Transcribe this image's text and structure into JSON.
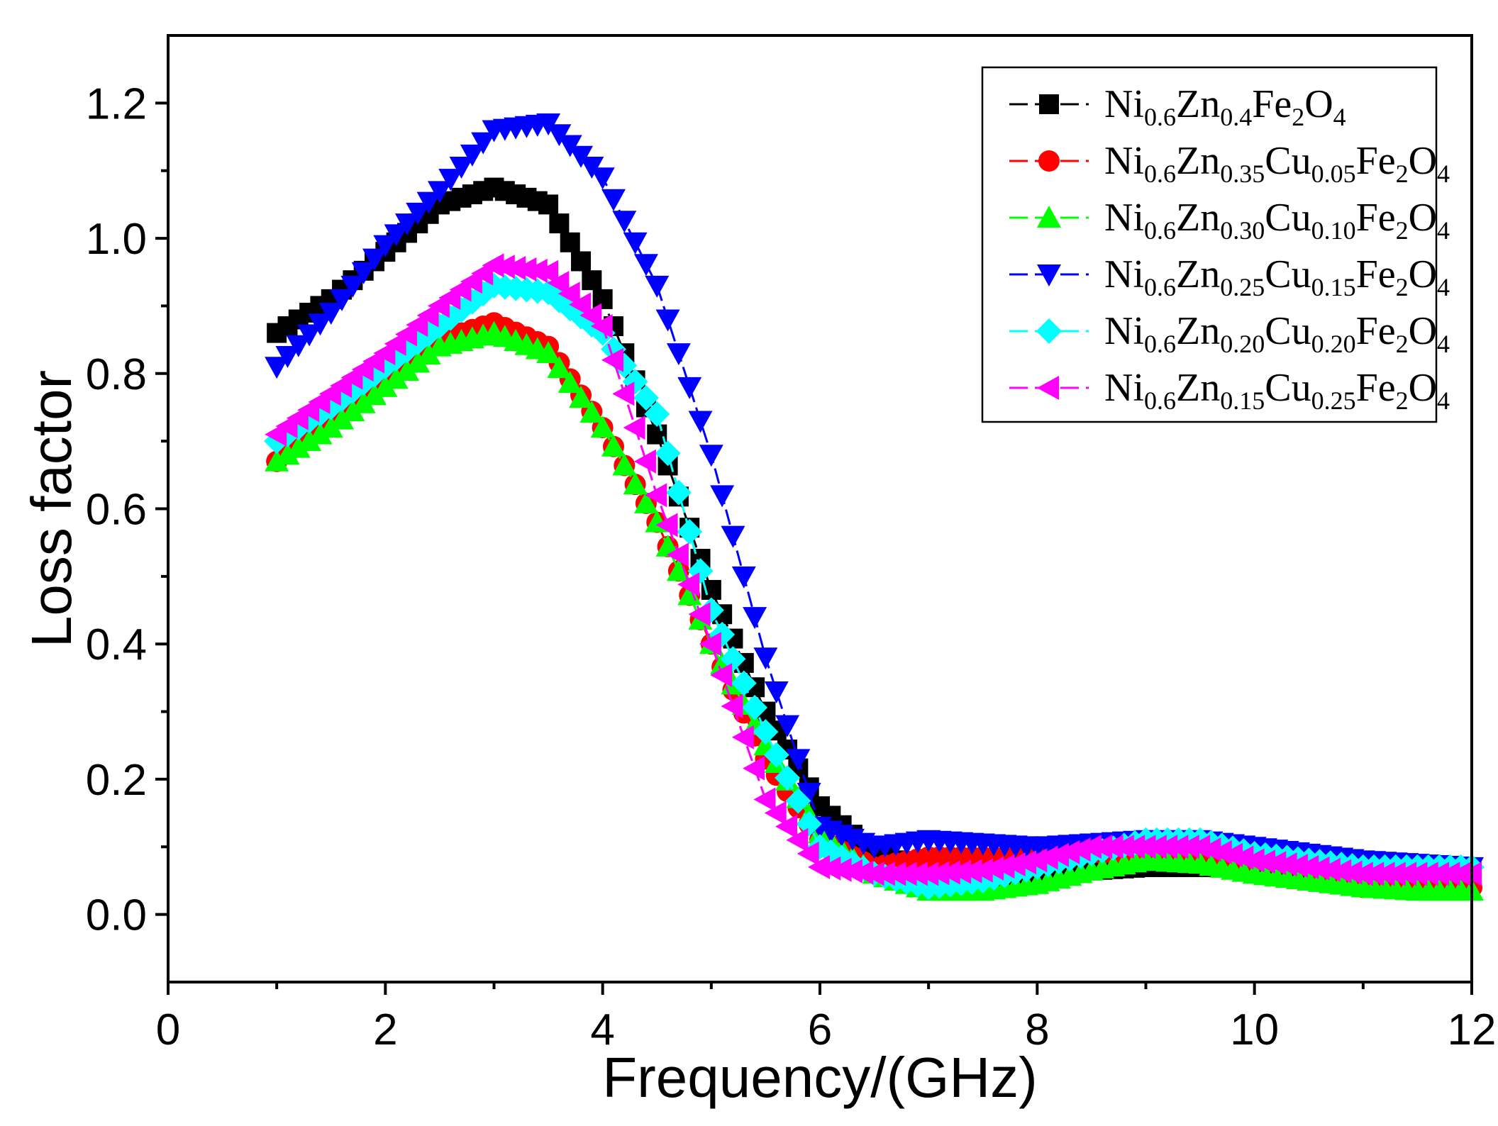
{
  "chart_data": {
    "type": "line",
    "title": "",
    "xlabel": "Frequency/(GHz)",
    "ylabel": "Loss factor",
    "xlim": [
      0,
      12
    ],
    "ylim": [
      -0.1,
      1.3
    ],
    "xticks": [
      0,
      2,
      4,
      6,
      8,
      10,
      12
    ],
    "xtick_labels": [
      "0",
      "2",
      "4",
      "6",
      "8",
      "10",
      "12"
    ],
    "yticks": [
      0.0,
      0.2,
      0.4,
      0.6,
      0.8,
      1.0,
      1.2
    ],
    "ytick_labels": [
      "0.0",
      "0.2",
      "0.4",
      "0.6",
      "0.8",
      "1.0",
      "1.2"
    ],
    "grid": false,
    "legend_position": "top-right",
    "series": [
      {
        "name": "Ni0.6Zn0.4Fe2O4",
        "legend_parts": [
          [
            "Ni",
            ""
          ],
          [
            "0.6",
            "sub"
          ],
          [
            "Zn",
            ""
          ],
          [
            "0.4",
            "sub"
          ],
          [
            "Fe",
            ""
          ],
          [
            "2",
            "sub"
          ],
          [
            "O",
            ""
          ],
          [
            "4",
            "sub"
          ]
        ],
        "color": "#000000",
        "marker": "square",
        "x": [
          1.0,
          1.5,
          2.0,
          2.5,
          3.0,
          3.5,
          4.0,
          4.5,
          5.0,
          5.5,
          6.0,
          6.5,
          7.0,
          7.5,
          8.0,
          8.5,
          9.0,
          9.5,
          10.0,
          10.5,
          11.0,
          11.5,
          12.0
        ],
        "y": [
          0.86,
          0.91,
          0.98,
          1.05,
          1.075,
          1.05,
          0.91,
          0.71,
          0.48,
          0.3,
          0.16,
          0.09,
          0.065,
          0.055,
          0.06,
          0.065,
          0.07,
          0.07,
          0.07,
          0.065,
          0.06,
          0.06,
          0.06
        ]
      },
      {
        "name": "Ni0.6Zn0.35Cu0.05Fe2O4",
        "legend_parts": [
          [
            "Ni",
            ""
          ],
          [
            "0.6",
            "sub"
          ],
          [
            "Zn",
            ""
          ],
          [
            "0.35",
            "sub"
          ],
          [
            "Cu",
            ""
          ],
          [
            "0.05",
            "sub"
          ],
          [
            "Fe",
            ""
          ],
          [
            "2",
            "sub"
          ],
          [
            "O",
            ""
          ],
          [
            "4",
            "sub"
          ]
        ],
        "color": "#ff0000",
        "marker": "circle",
        "x": [
          1.0,
          1.5,
          2.0,
          2.5,
          3.0,
          3.5,
          4.0,
          4.5,
          5.0,
          5.5,
          6.0,
          6.5,
          7.0,
          7.5,
          8.0,
          8.5,
          9.0,
          9.5,
          10.0,
          10.5,
          11.0,
          11.5,
          12.0
        ],
        "y": [
          0.67,
          0.74,
          0.8,
          0.85,
          0.875,
          0.84,
          0.72,
          0.58,
          0.4,
          0.23,
          0.11,
          0.07,
          0.085,
          0.085,
          0.085,
          0.09,
          0.09,
          0.09,
          0.08,
          0.07,
          0.04,
          0.04,
          0.04
        ]
      },
      {
        "name": "Ni0.6Zn0.30Cu0.10Fe2O4",
        "legend_parts": [
          [
            "Ni",
            ""
          ],
          [
            "0.6",
            "sub"
          ],
          [
            "Zn",
            ""
          ],
          [
            "0.30",
            "sub"
          ],
          [
            "Cu",
            ""
          ],
          [
            "0.10",
            "sub"
          ],
          [
            "Fe",
            ""
          ],
          [
            "2",
            "sub"
          ],
          [
            "O",
            ""
          ],
          [
            "4",
            "sub"
          ]
        ],
        "color": "#00ff00",
        "marker": "triangle-up",
        "x": [
          1.0,
          1.5,
          2.0,
          2.5,
          3.0,
          3.5,
          4.0,
          4.5,
          5.0,
          5.5,
          6.0,
          6.5,
          7.0,
          7.5,
          8.0,
          8.5,
          9.0,
          9.5,
          10.0,
          10.5,
          11.0,
          11.5,
          12.0
        ],
        "y": [
          0.67,
          0.72,
          0.78,
          0.84,
          0.86,
          0.83,
          0.72,
          0.58,
          0.4,
          0.25,
          0.12,
          0.06,
          0.035,
          0.035,
          0.045,
          0.065,
          0.08,
          0.075,
          0.06,
          0.05,
          0.04,
          0.035,
          0.035
        ]
      },
      {
        "name": "Ni0.6Zn0.25Cu0.15Fe2O4",
        "legend_parts": [
          [
            "Ni",
            ""
          ],
          [
            "0.6",
            "sub"
          ],
          [
            "Zn",
            ""
          ],
          [
            "0.25",
            "sub"
          ],
          [
            "Cu",
            ""
          ],
          [
            "0.15",
            "sub"
          ],
          [
            "Fe",
            ""
          ],
          [
            "2",
            "sub"
          ],
          [
            "O",
            ""
          ],
          [
            "4",
            "sub"
          ]
        ],
        "color": "#0000ff",
        "marker": "triangle-down",
        "x": [
          1.0,
          1.5,
          2.0,
          2.5,
          3.0,
          3.5,
          4.0,
          4.5,
          5.0,
          5.5,
          6.0,
          6.5,
          7.0,
          7.5,
          8.0,
          8.5,
          9.0,
          9.5,
          10.0,
          10.5,
          11.0,
          11.5,
          12.0
        ],
        "y": [
          0.81,
          0.89,
          0.99,
          1.07,
          1.16,
          1.17,
          1.09,
          0.93,
          0.68,
          0.38,
          0.13,
          0.1,
          0.11,
          0.105,
          0.1,
          0.105,
          0.11,
          0.11,
          0.1,
          0.09,
          0.08,
          0.075,
          0.07
        ]
      },
      {
        "name": "Ni0.6Zn0.20Cu0.20Fe2O4",
        "legend_parts": [
          [
            "Ni",
            ""
          ],
          [
            "0.6",
            "sub"
          ],
          [
            "Zn",
            ""
          ],
          [
            "0.20",
            "sub"
          ],
          [
            "Cu",
            ""
          ],
          [
            "0.20",
            "sub"
          ],
          [
            "Fe",
            ""
          ],
          [
            "2",
            "sub"
          ],
          [
            "O",
            ""
          ],
          [
            "4",
            "sub"
          ]
        ],
        "color": "#00ffff",
        "marker": "diamond",
        "x": [
          1.0,
          1.5,
          2.0,
          2.5,
          3.0,
          3.5,
          4.0,
          4.5,
          5.0,
          5.5,
          6.0,
          6.5,
          7.0,
          7.5,
          8.0,
          8.5,
          9.0,
          9.5,
          10.0,
          10.5,
          11.0,
          11.5,
          12.0
        ],
        "y": [
          0.7,
          0.75,
          0.81,
          0.87,
          0.93,
          0.92,
          0.86,
          0.74,
          0.45,
          0.27,
          0.1,
          0.06,
          0.04,
          0.05,
          0.07,
          0.09,
          0.11,
          0.11,
          0.09,
          0.08,
          0.07,
          0.07,
          0.07
        ]
      },
      {
        "name": "Ni0.6Zn0.15Cu0.25Fe2O4",
        "legend_parts": [
          [
            "Ni",
            ""
          ],
          [
            "0.6",
            "sub"
          ],
          [
            "Zn",
            ""
          ],
          [
            "0.15",
            "sub"
          ],
          [
            "Cu",
            ""
          ],
          [
            "0.25",
            "sub"
          ],
          [
            "Fe",
            ""
          ],
          [
            "2",
            "sub"
          ],
          [
            "O",
            ""
          ],
          [
            "4",
            "sub"
          ]
        ],
        "color": "#ff00ff",
        "marker": "triangle-left",
        "x": [
          1.0,
          1.5,
          2.0,
          2.5,
          3.0,
          3.5,
          4.0,
          4.5,
          5.0,
          5.5,
          6.0,
          6.5,
          7.0,
          7.5,
          8.0,
          8.5,
          9.0,
          9.5,
          10.0,
          10.5,
          11.0,
          11.5,
          12.0
        ],
        "y": [
          0.71,
          0.77,
          0.83,
          0.9,
          0.96,
          0.95,
          0.87,
          0.62,
          0.4,
          0.17,
          0.07,
          0.06,
          0.06,
          0.065,
          0.08,
          0.1,
          0.1,
          0.1,
          0.08,
          0.07,
          0.06,
          0.06,
          0.06
        ]
      }
    ]
  }
}
